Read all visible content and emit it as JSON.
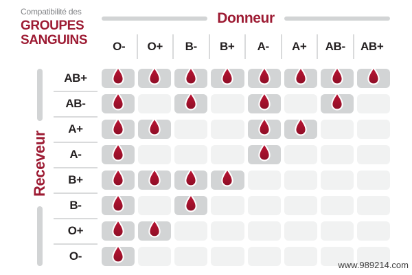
{
  "title": {
    "kicker": "Compatibilité des",
    "line1": "GROUPES",
    "line2": "SANGUINS"
  },
  "axes": {
    "donor": "Donneur",
    "recipient": "Receveur"
  },
  "watermark": "www.989214.com",
  "colors": {
    "accent_red": "#9d1b33",
    "drop_red_light": "#bb1434",
    "drop_red_dark": "#8c0e26",
    "cell_active": "#d2d4d5",
    "cell_inactive": "#f1f2f2",
    "axis_line_gray": "#d2d4d5",
    "separator_gray": "#d9dadb",
    "text_dark": "#231f20",
    "text_gray": "#808285"
  },
  "chart_data": {
    "type": "heatmap",
    "title": "Compatibilité des groupes sanguins",
    "x_axis_label": "Donneur",
    "y_axis_label": "Receveur",
    "columns": [
      "O-",
      "O+",
      "B-",
      "B+",
      "A-",
      "A+",
      "AB-",
      "AB+"
    ],
    "rows": [
      "AB+",
      "AB-",
      "A+",
      "A-",
      "B+",
      "B-",
      "O+",
      "O-"
    ],
    "compatible_marker": "blood-drop",
    "matrix": [
      [
        1,
        1,
        1,
        1,
        1,
        1,
        1,
        1
      ],
      [
        1,
        0,
        1,
        0,
        1,
        0,
        1,
        0
      ],
      [
        1,
        1,
        0,
        0,
        1,
        1,
        0,
        0
      ],
      [
        1,
        0,
        0,
        0,
        1,
        0,
        0,
        0
      ],
      [
        1,
        1,
        1,
        1,
        0,
        0,
        0,
        0
      ],
      [
        1,
        0,
        1,
        0,
        0,
        0,
        0,
        0
      ],
      [
        1,
        1,
        0,
        0,
        0,
        0,
        0,
        0
      ],
      [
        1,
        0,
        0,
        0,
        0,
        0,
        0,
        0
      ]
    ]
  }
}
